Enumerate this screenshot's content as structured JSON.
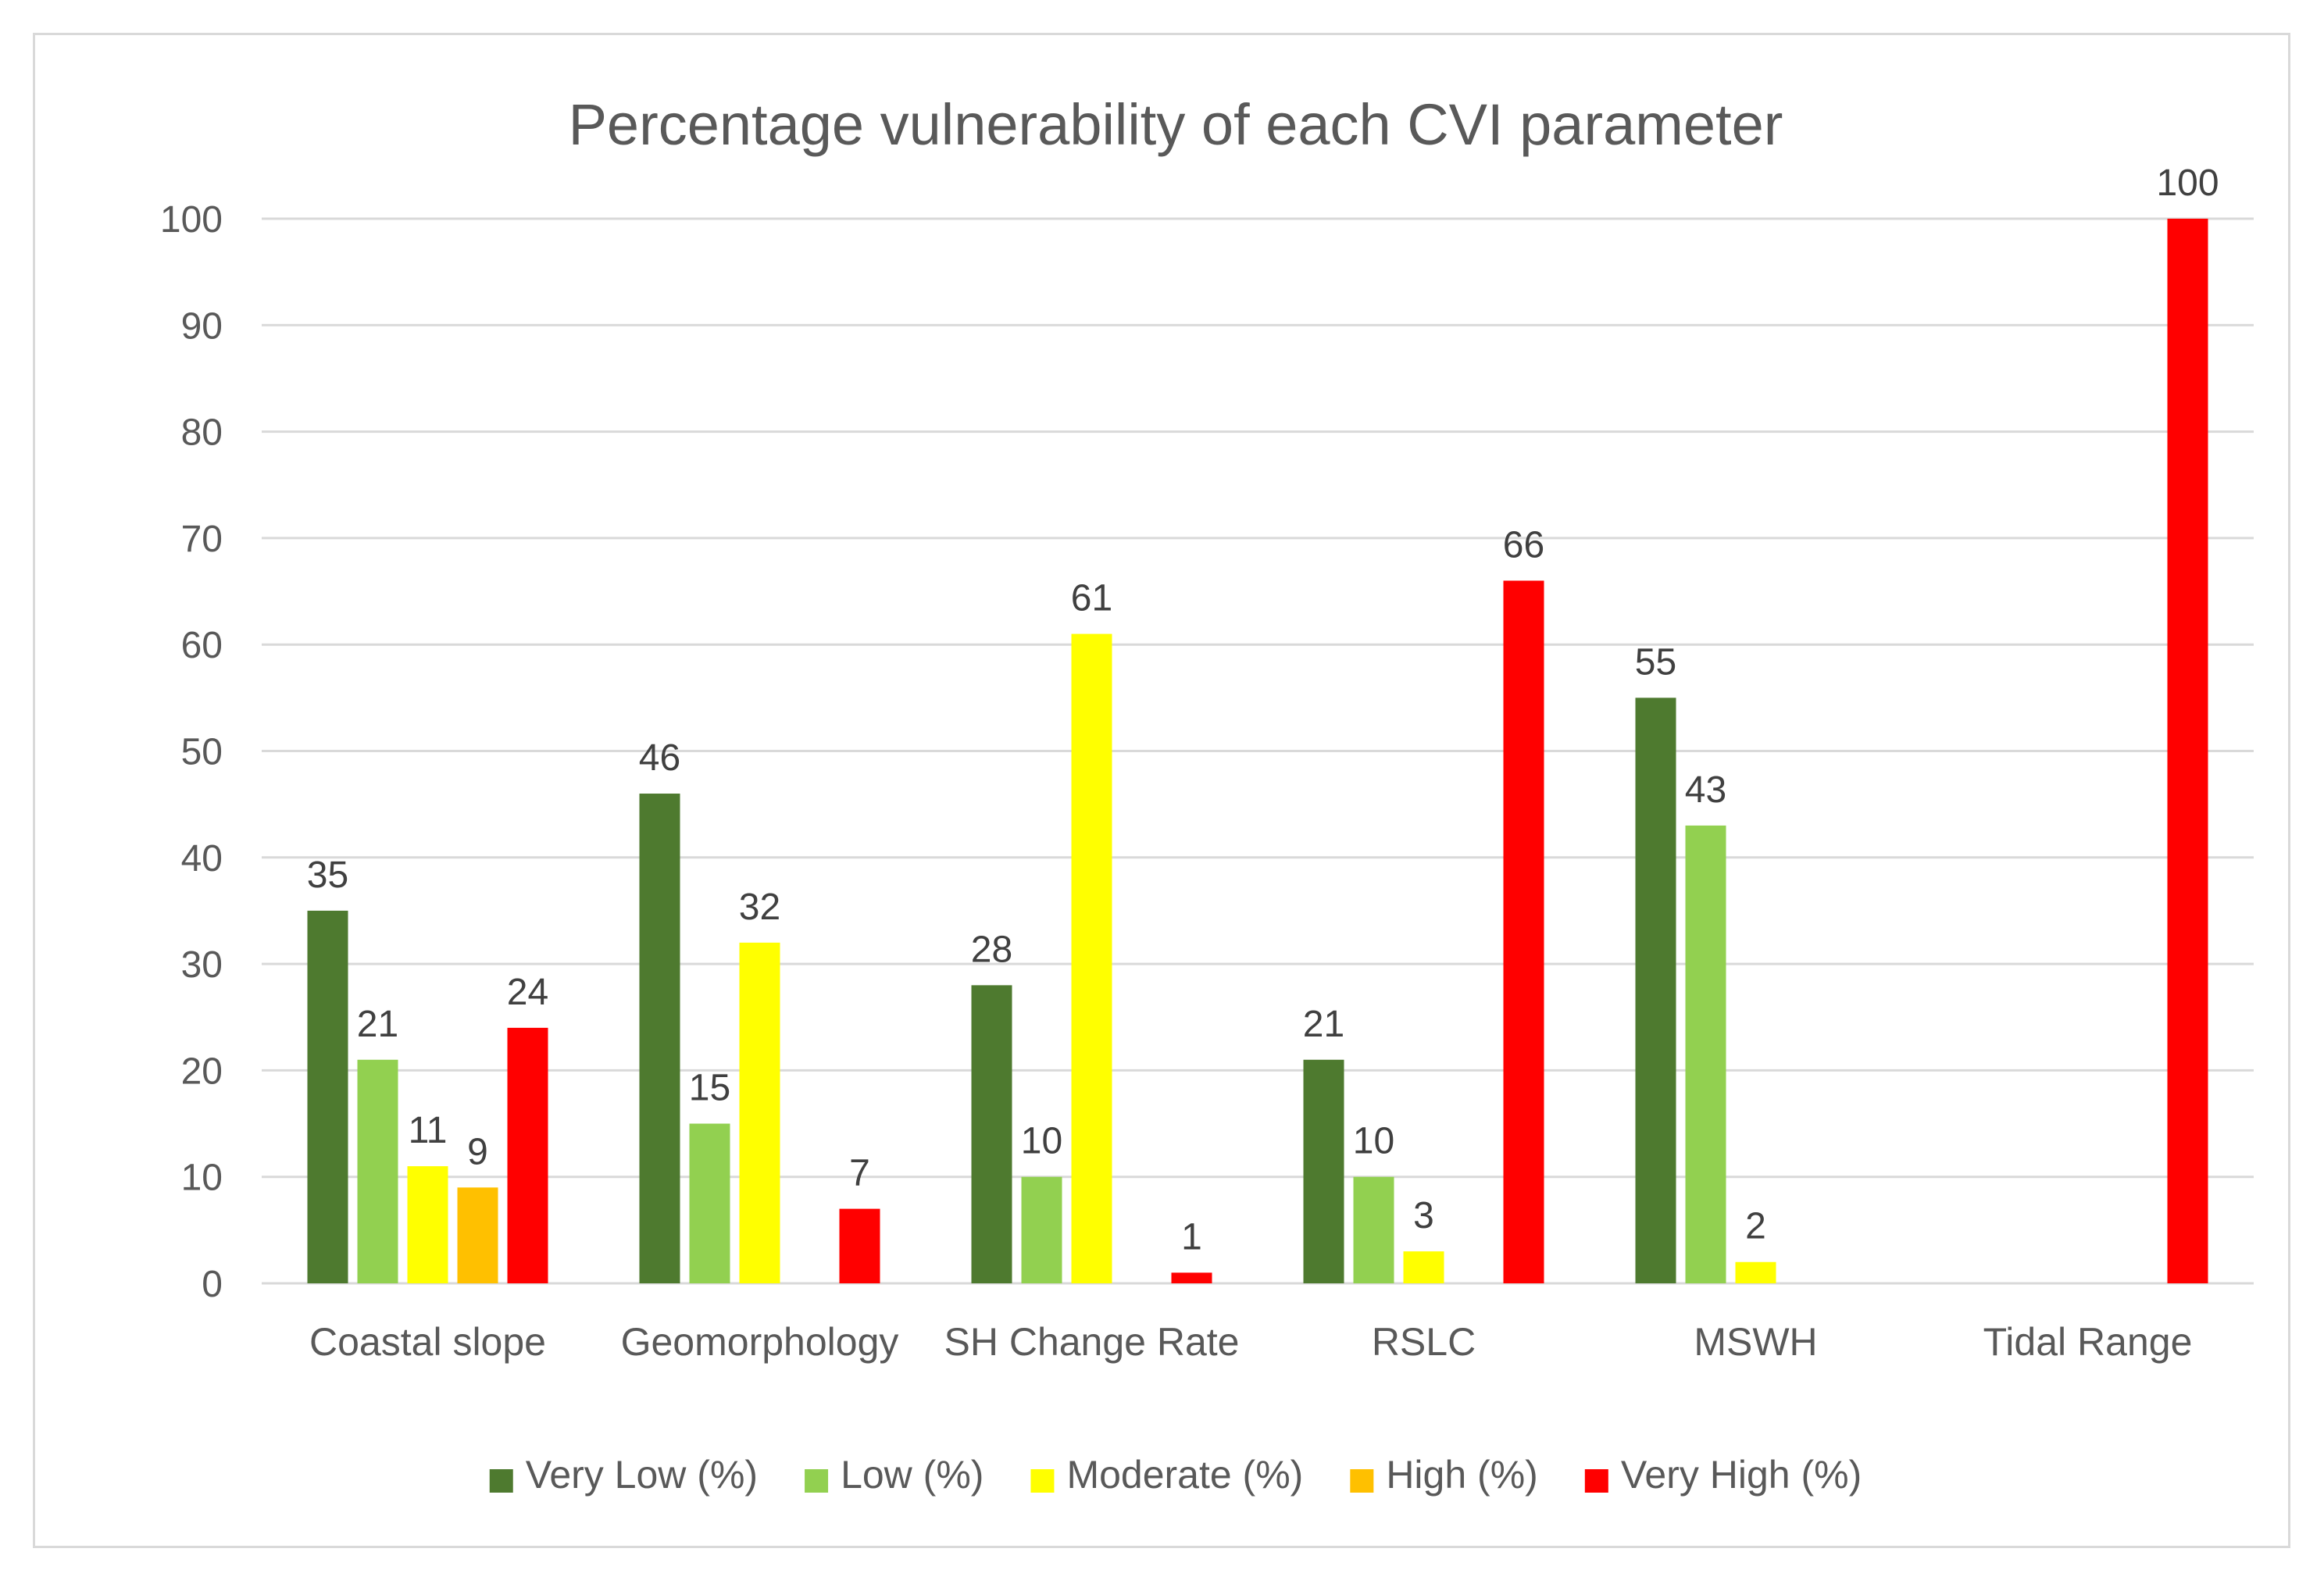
{
  "chart_data": {
    "type": "bar",
    "title": "Percentage vulnerability of each CVI parameter",
    "categories": [
      "Coastal slope",
      "Geomorphology",
      "SH Change Rate",
      "RSLC",
      "MSWH",
      "Tidal Range"
    ],
    "ylim": [
      0,
      100
    ],
    "yticks": [
      0,
      10,
      20,
      30,
      40,
      50,
      60,
      70,
      80,
      90,
      100
    ],
    "xlabel": "",
    "ylabel": "",
    "grid": true,
    "legend_position": "bottom",
    "series": [
      {
        "name": "Very Low (%)",
        "color": "#4e7a2f",
        "values": [
          35,
          46,
          28,
          21,
          55,
          null
        ]
      },
      {
        "name": "Low (%)",
        "color": "#92d050",
        "values": [
          21,
          15,
          10,
          10,
          43,
          null
        ]
      },
      {
        "name": "Moderate (%)",
        "color": "#ffff00",
        "values": [
          11,
          32,
          61,
          3,
          2,
          null
        ]
      },
      {
        "name": "High (%)",
        "color": "#ffc000",
        "values": [
          9,
          null,
          null,
          null,
          null,
          null
        ]
      },
      {
        "name": "Very High (%)",
        "color": "#ff0000",
        "values": [
          24,
          7,
          1,
          66,
          null,
          100
        ]
      }
    ]
  }
}
